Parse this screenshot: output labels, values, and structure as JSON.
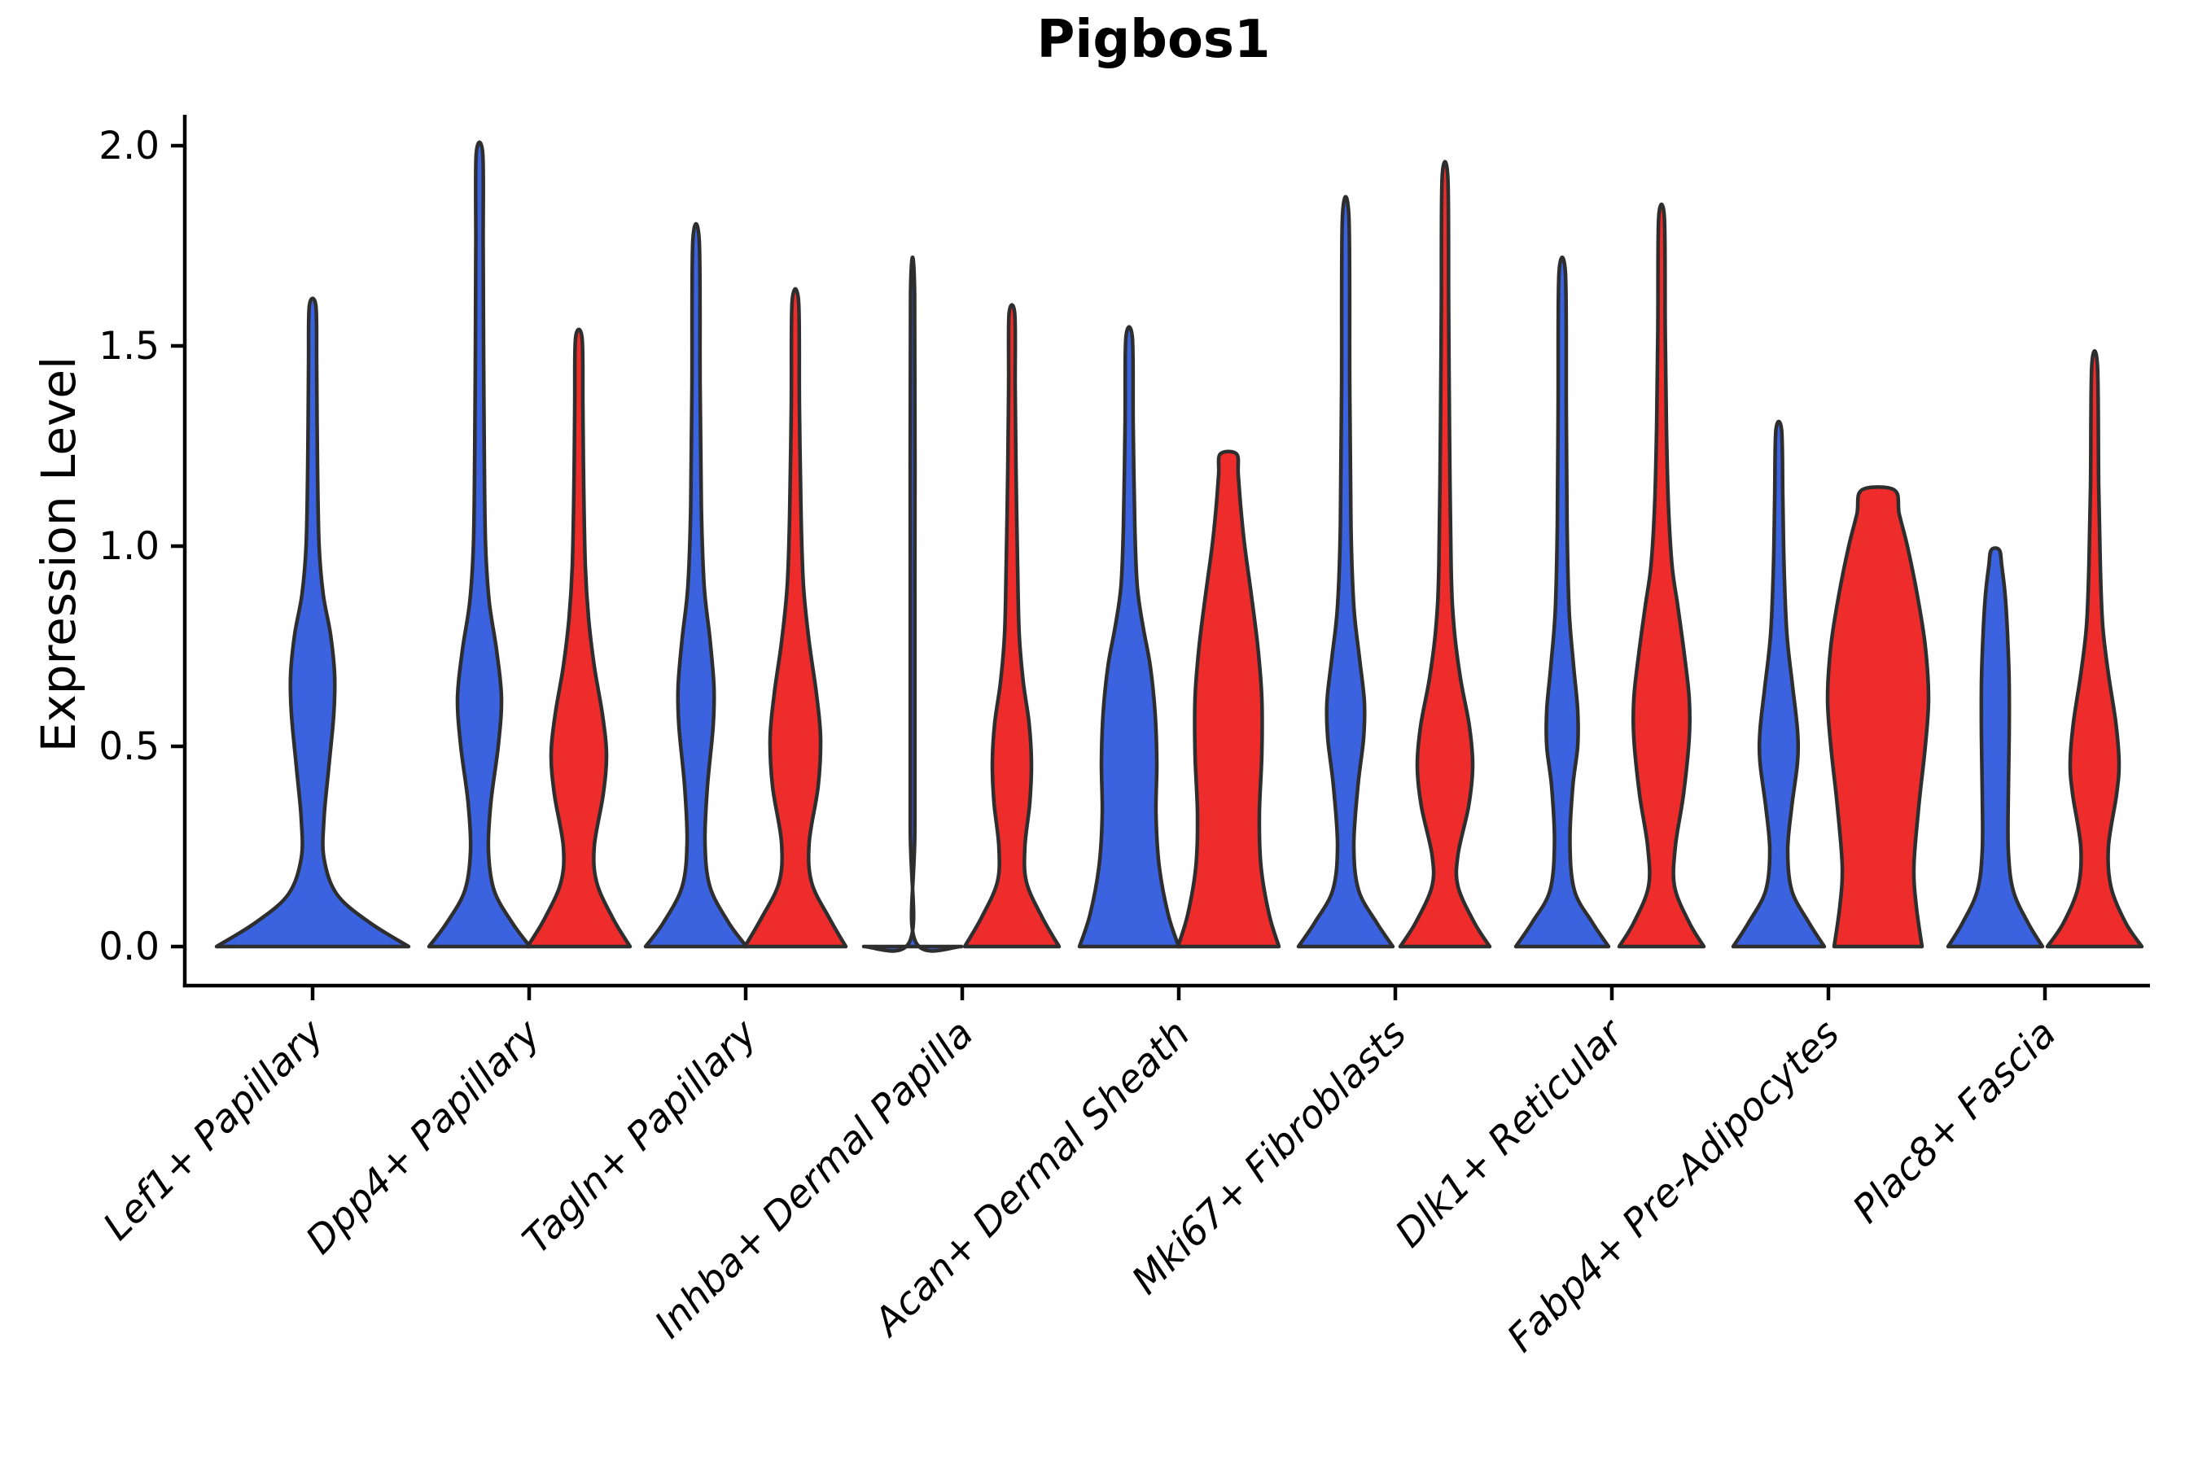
{
  "title": "Pigbos1",
  "y_axis": {
    "label": "Expression Level"
  },
  "chart_data": {
    "type": "violin",
    "title": "Pigbos1",
    "xlabel": "",
    "ylabel": "Expression Level",
    "ylim": [
      0,
      2.08
    ],
    "yticks": [
      0.0,
      0.5,
      1.0,
      1.5,
      2.0
    ],
    "ytick_labels": [
      "0.0",
      "0.5",
      "1.0",
      "1.5",
      "2.0"
    ],
    "grid": false,
    "legend_position": "none",
    "colors": {
      "blue": "#3B62DF",
      "red": "#EE2C2C",
      "outline": "#2E2E2E",
      "axis": "#000000"
    },
    "categories": [
      "Lef1+ Papillary",
      "Dpp4+ Papillary",
      "Tagln+ Papillary",
      "Inhba+ Dermal Papilla",
      "Acan+ Dermal Sheath",
      "Mki67+ Fibroblasts",
      "Dlk1+ Reticular",
      "Fabp4+ Pre-Adipocytes",
      "Plac8+ Fascia"
    ],
    "groups": [
      {
        "category": "Lef1+ Papillary",
        "violins": [
          {
            "color": "blue",
            "pos": 0,
            "max": 1.6,
            "top": "spike",
            "profile": [
              [
                0,
                118
              ],
              [
                0.06,
                70
              ],
              [
                0.13,
                30
              ],
              [
                0.22,
                14
              ],
              [
                0.32,
                14
              ],
              [
                0.45,
                20
              ],
              [
                0.58,
                26
              ],
              [
                0.68,
                27
              ],
              [
                0.78,
                22
              ],
              [
                0.88,
                13
              ],
              [
                1.0,
                8
              ],
              [
                1.2,
                6
              ],
              [
                1.45,
                5
              ],
              [
                1.6,
                4
              ]
            ]
          }
        ]
      },
      {
        "category": "Dpp4+ Papillary",
        "violins": [
          {
            "color": "blue",
            "pos": -1,
            "max": 1.98,
            "top": "spike",
            "profile": [
              [
                0,
                62
              ],
              [
                0.06,
                40
              ],
              [
                0.14,
                18
              ],
              [
                0.24,
                11
              ],
              [
                0.36,
                14
              ],
              [
                0.5,
                23
              ],
              [
                0.62,
                27
              ],
              [
                0.74,
                21
              ],
              [
                0.86,
                12
              ],
              [
                1.0,
                7.5
              ],
              [
                1.2,
                6
              ],
              [
                1.5,
                5
              ],
              [
                1.75,
                4.5
              ],
              [
                1.98,
                4
              ]
            ]
          },
          {
            "color": "red",
            "pos": 1,
            "max": 1.52,
            "top": "spike",
            "profile": [
              [
                0,
                63
              ],
              [
                0.07,
                42
              ],
              [
                0.16,
                22
              ],
              [
                0.25,
                19
              ],
              [
                0.38,
                30
              ],
              [
                0.48,
                34
              ],
              [
                0.58,
                29
              ],
              [
                0.7,
                19
              ],
              [
                0.82,
                12
              ],
              [
                0.95,
                8
              ],
              [
                1.15,
                6
              ],
              [
                1.35,
                5
              ],
              [
                1.52,
                4
              ]
            ]
          }
        ]
      },
      {
        "category": "Tagln+ Papillary",
        "violins": [
          {
            "color": "blue",
            "pos": -1,
            "max": 1.76,
            "top": "spike",
            "profile": [
              [
                0,
                62
              ],
              [
                0.06,
                40
              ],
              [
                0.15,
                17
              ],
              [
                0.26,
                11
              ],
              [
                0.4,
                14
              ],
              [
                0.55,
                21
              ],
              [
                0.65,
                22
              ],
              [
                0.77,
                17
              ],
              [
                0.9,
                10
              ],
              [
                1.1,
                6.5
              ],
              [
                1.4,
                5
              ],
              [
                1.76,
                4
              ]
            ]
          },
          {
            "color": "red",
            "pos": 1,
            "max": 1.61,
            "top": "spike",
            "profile": [
              [
                0,
                62
              ],
              [
                0.07,
                42
              ],
              [
                0.16,
                20
              ],
              [
                0.26,
                17
              ],
              [
                0.4,
                28
              ],
              [
                0.52,
                31
              ],
              [
                0.63,
                26
              ],
              [
                0.76,
                17
              ],
              [
                0.9,
                10
              ],
              [
                1.08,
                7
              ],
              [
                1.35,
                5
              ],
              [
                1.61,
                4
              ]
            ]
          }
        ]
      },
      {
        "category": "Inhba+ Dermal Papilla",
        "violins": [
          {
            "color": "blue",
            "pos": -1,
            "max": 1.63,
            "top": "line",
            "profile": [
              [
                0,
                60
              ],
              [
                0.015,
                3
              ],
              [
                0.3,
                2.8
              ],
              [
                0.9,
                2.8
              ],
              [
                1.63,
                2.5
              ]
            ]
          },
          {
            "color": "red",
            "pos": 1,
            "max": 1.58,
            "top": "spike",
            "profile": [
              [
                0,
                58
              ],
              [
                0.07,
                38
              ],
              [
                0.16,
                18
              ],
              [
                0.25,
                16
              ],
              [
                0.36,
                22
              ],
              [
                0.46,
                24
              ],
              [
                0.56,
                21
              ],
              [
                0.66,
                14
              ],
              [
                0.78,
                9
              ],
              [
                0.95,
                7
              ],
              [
                1.2,
                5
              ],
              [
                1.4,
                4
              ],
              [
                1.58,
                3.5
              ]
            ]
          }
        ]
      },
      {
        "category": "Acan+ Dermal Sheath",
        "violins": [
          {
            "color": "blue",
            "pos": -1,
            "max": 1.52,
            "top": "spike",
            "profile": [
              [
                0,
                61
              ],
              [
                0.08,
                48
              ],
              [
                0.2,
                37
              ],
              [
                0.33,
                33
              ],
              [
                0.46,
                34
              ],
              [
                0.58,
                32
              ],
              [
                0.7,
                26
              ],
              [
                0.8,
                17
              ],
              [
                0.9,
                10
              ],
              [
                1.05,
                7
              ],
              [
                1.3,
                5
              ],
              [
                1.52,
                4
              ]
            ]
          },
          {
            "color": "red",
            "pos": 1,
            "max": 1.23,
            "top": "flat",
            "profile": [
              [
                0,
                62
              ],
              [
                0.08,
                50
              ],
              [
                0.2,
                40
              ],
              [
                0.33,
                38
              ],
              [
                0.48,
                41
              ],
              [
                0.62,
                41
              ],
              [
                0.75,
                36
              ],
              [
                0.88,
                28
              ],
              [
                1.0,
                20
              ],
              [
                1.1,
                15
              ],
              [
                1.18,
                12
              ],
              [
                1.23,
                10
              ]
            ]
          }
        ]
      },
      {
        "category": "Mki67+ Fibroblasts",
        "violins": [
          {
            "color": "blue",
            "pos": -1,
            "max": 1.82,
            "top": "spike",
            "profile": [
              [
                0,
                58
              ],
              [
                0.06,
                38
              ],
              [
                0.14,
                16
              ],
              [
                0.25,
                10
              ],
              [
                0.4,
                15
              ],
              [
                0.52,
                22
              ],
              [
                0.61,
                23
              ],
              [
                0.72,
                17
              ],
              [
                0.85,
                10
              ],
              [
                1.05,
                6.5
              ],
              [
                1.4,
                5
              ],
              [
                1.82,
                4
              ]
            ]
          },
          {
            "color": "red",
            "pos": 1,
            "max": 1.92,
            "top": "spike",
            "profile": [
              [
                0,
                55
              ],
              [
                0.06,
                36
              ],
              [
                0.15,
                16
              ],
              [
                0.23,
                16
              ],
              [
                0.35,
                29
              ],
              [
                0.45,
                34
              ],
              [
                0.55,
                30
              ],
              [
                0.67,
                19
              ],
              [
                0.8,
                11
              ],
              [
                0.95,
                7.5
              ],
              [
                1.3,
                5.5
              ],
              [
                1.6,
                4.5
              ],
              [
                1.92,
                3.5
              ]
            ]
          }
        ]
      },
      {
        "category": "Dlk1+ Reticular",
        "violins": [
          {
            "color": "blue",
            "pos": -1,
            "max": 1.68,
            "top": "spike",
            "profile": [
              [
                0,
                57
              ],
              [
                0.06,
                37
              ],
              [
                0.14,
                15
              ],
              [
                0.26,
                9.5
              ],
              [
                0.4,
                13
              ],
              [
                0.5,
                19
              ],
              [
                0.59,
                19
              ],
              [
                0.7,
                14
              ],
              [
                0.84,
                8.5
              ],
              [
                1.05,
                6
              ],
              [
                1.35,
                5
              ],
              [
                1.68,
                4
              ]
            ]
          },
          {
            "color": "red",
            "pos": 1,
            "max": 1.82,
            "top": "spike",
            "profile": [
              [
                0,
                52
              ],
              [
                0.06,
                34
              ],
              [
                0.15,
                16
              ],
              [
                0.25,
                17
              ],
              [
                0.38,
                27
              ],
              [
                0.52,
                34
              ],
              [
                0.62,
                34
              ],
              [
                0.73,
                28
              ],
              [
                0.85,
                20
              ],
              [
                0.95,
                13
              ],
              [
                1.1,
                8.5
              ],
              [
                1.3,
                6
              ],
              [
                1.55,
                4.5
              ],
              [
                1.82,
                3.5
              ]
            ]
          }
        ]
      },
      {
        "category": "Fabp4+ Pre-Adipocytes",
        "violins": [
          {
            "color": "blue",
            "pos": -1,
            "max": 1.29,
            "top": "spike",
            "profile": [
              [
                0,
                56
              ],
              [
                0.06,
                37
              ],
              [
                0.14,
                16
              ],
              [
                0.24,
                11
              ],
              [
                0.35,
                16
              ],
              [
                0.46,
                23
              ],
              [
                0.54,
                23
              ],
              [
                0.65,
                17
              ],
              [
                0.78,
                10
              ],
              [
                0.95,
                6.5
              ],
              [
                1.12,
                5
              ],
              [
                1.29,
                3.5
              ]
            ]
          },
          {
            "color": "red",
            "pos": 1,
            "max": 1.14,
            "top": "flat",
            "profile": [
              [
                0,
                54
              ],
              [
                0.1,
                47
              ],
              [
                0.2,
                44
              ],
              [
                0.35,
                50
              ],
              [
                0.5,
                58
              ],
              [
                0.62,
                62
              ],
              [
                0.75,
                58
              ],
              [
                0.88,
                48
              ],
              [
                1.0,
                36
              ],
              [
                1.08,
                26
              ],
              [
                1.14,
                20
              ]
            ]
          }
        ]
      },
      {
        "category": "Plac8+ Fascia",
        "violins": [
          {
            "color": "blue",
            "pos": -1,
            "max": 0.99,
            "top": "flat",
            "profile": [
              [
                0,
                58
              ],
              [
                0.06,
                40
              ],
              [
                0.14,
                22
              ],
              [
                0.24,
                16
              ],
              [
                0.38,
                16
              ],
              [
                0.52,
                17
              ],
              [
                0.66,
                17
              ],
              [
                0.78,
                15
              ],
              [
                0.88,
                12
              ],
              [
                0.95,
                8
              ],
              [
                0.99,
                5
              ]
            ]
          },
          {
            "color": "red",
            "pos": 1,
            "max": 1.45,
            "top": "spike",
            "profile": [
              [
                0,
                58
              ],
              [
                0.06,
                38
              ],
              [
                0.15,
                20
              ],
              [
                0.25,
                17
              ],
              [
                0.38,
                27
              ],
              [
                0.46,
                30
              ],
              [
                0.56,
                26
              ],
              [
                0.68,
                17
              ],
              [
                0.8,
                10
              ],
              [
                0.95,
                7
              ],
              [
                1.15,
                5
              ],
              [
                1.45,
                3.5
              ]
            ]
          }
        ]
      }
    ]
  }
}
